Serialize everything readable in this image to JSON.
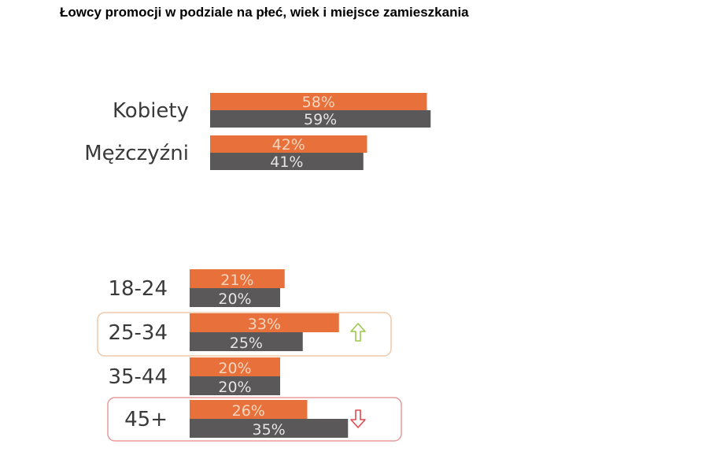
{
  "title": "Łowcy promocji w podziale na płeć, wiek i miejsce zamieszkania",
  "colors": {
    "series_a": "#e8703a",
    "series_b": "#5a5858",
    "label_a": "#f6d6c0",
    "label_b": "#e4e4e4",
    "up_arrow": "#9ac84c",
    "down_arrow": "#e0484e",
    "box_up_border": "#f0c8a8",
    "box_down_border": "#e89a9a"
  },
  "chart_data": [
    {
      "type": "bar",
      "orientation": "horizontal",
      "categories": [
        "Kobiety",
        "Mężczyźni"
      ],
      "series": [
        {
          "values": [
            58,
            42
          ]
        },
        {
          "values": [
            59,
            41
          ]
        }
      ],
      "value_labels": [
        [
          "58%",
          "42%"
        ],
        [
          "59%",
          "41%"
        ]
      ],
      "unit": "%"
    },
    {
      "type": "bar",
      "orientation": "horizontal",
      "categories": [
        "18-24",
        "25-34",
        "35-44",
        "45+"
      ],
      "series": [
        {
          "values": [
            21,
            33,
            20,
            26
          ]
        },
        {
          "values": [
            20,
            25,
            20,
            35
          ]
        }
      ],
      "value_labels": [
        [
          "21%",
          "33%",
          "20%",
          "26%"
        ],
        [
          "20%",
          "25%",
          "20%",
          "35%"
        ]
      ],
      "unit": "%",
      "highlights": [
        {
          "category": "25-34",
          "trend": "up",
          "icon": "arrow-up-icon"
        },
        {
          "category": "45+",
          "trend": "down",
          "icon": "arrow-down-icon"
        }
      ]
    }
  ]
}
